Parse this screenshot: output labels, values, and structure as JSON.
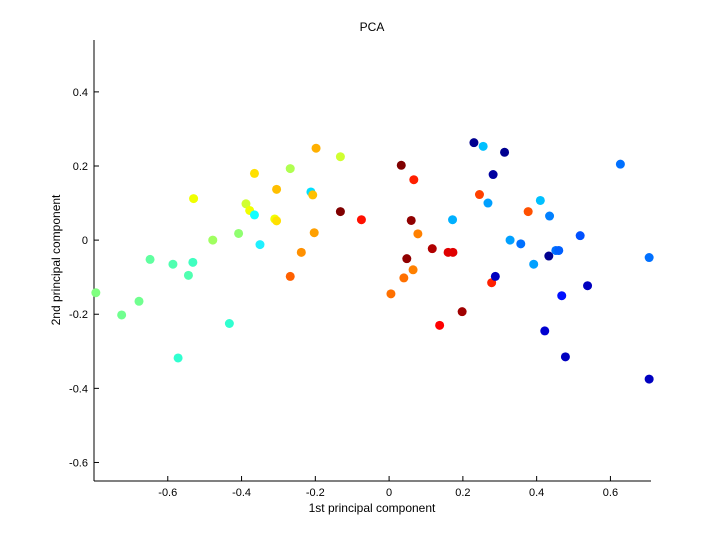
{
  "chart_data": {
    "type": "scatter",
    "title": "PCA",
    "xlabel": "1st principal component",
    "ylabel": "2nd principal component",
    "xlim": [
      -0.8,
      0.71
    ],
    "ylim": [
      -0.65,
      0.54
    ],
    "xticks": [
      -0.6,
      -0.4,
      -0.2,
      0,
      0.2,
      0.4,
      0.6
    ],
    "xtick_labels": [
      "-0.6",
      "-0.4",
      "-0.2",
      "0",
      "0.2",
      "0.4",
      "0.6"
    ],
    "yticks": [
      -0.6,
      -0.4,
      -0.2,
      0,
      0.2,
      0.4
    ],
    "ytick_labels": [
      "-0.6",
      "-0.4",
      "-0.2",
      "0",
      "0.2",
      "0.4"
    ],
    "grid": false,
    "colormap": "jet",
    "points": [
      {
        "x": -0.795,
        "y": -0.142,
        "color": "#80ff80"
      },
      {
        "x": -0.725,
        "y": -0.202,
        "color": "#70ff8f"
      },
      {
        "x": -0.678,
        "y": -0.165,
        "color": "#70ff8f"
      },
      {
        "x": -0.648,
        "y": -0.052,
        "color": "#60ffa0"
      },
      {
        "x": -0.586,
        "y": -0.065,
        "color": "#50ffb0"
      },
      {
        "x": -0.572,
        "y": -0.318,
        "color": "#30ffd0"
      },
      {
        "x": -0.544,
        "y": -0.095,
        "color": "#50ffb0"
      },
      {
        "x": -0.532,
        "y": -0.06,
        "color": "#40ffc0"
      },
      {
        "x": -0.53,
        "y": 0.112,
        "color": "#f0ff00"
      },
      {
        "x": -0.478,
        "y": 0.0,
        "color": "#a0ff60"
      },
      {
        "x": -0.433,
        "y": -0.225,
        "color": "#30ffd0"
      },
      {
        "x": -0.408,
        "y": 0.018,
        "color": "#90ff70"
      },
      {
        "x": -0.388,
        "y": 0.098,
        "color": "#d0ff30"
      },
      {
        "x": -0.378,
        "y": 0.08,
        "color": "#f0ff00"
      },
      {
        "x": -0.365,
        "y": 0.18,
        "color": "#ffe000"
      },
      {
        "x": -0.365,
        "y": 0.068,
        "color": "#10ffff"
      },
      {
        "x": -0.35,
        "y": -0.012,
        "color": "#20f0ff"
      },
      {
        "x": -0.31,
        "y": 0.057,
        "color": "#f0ff00"
      },
      {
        "x": -0.305,
        "y": 0.052,
        "color": "#ffe000"
      },
      {
        "x": -0.305,
        "y": 0.137,
        "color": "#ffbf00"
      },
      {
        "x": -0.268,
        "y": 0.193,
        "color": "#b0ff50"
      },
      {
        "x": -0.268,
        "y": -0.098,
        "color": "#ff6000"
      },
      {
        "x": -0.238,
        "y": -0.033,
        "color": "#ff9000"
      },
      {
        "x": -0.212,
        "y": 0.13,
        "color": "#00e0ff"
      },
      {
        "x": -0.207,
        "y": 0.122,
        "color": "#ffc000"
      },
      {
        "x": -0.203,
        "y": 0.02,
        "color": "#ffa000"
      },
      {
        "x": -0.198,
        "y": 0.248,
        "color": "#ffb000"
      },
      {
        "x": -0.132,
        "y": 0.225,
        "color": "#d0ff30"
      },
      {
        "x": -0.132,
        "y": 0.077,
        "color": "#800000"
      },
      {
        "x": -0.075,
        "y": 0.055,
        "color": "#ff1000"
      },
      {
        "x": 0.005,
        "y": -0.145,
        "color": "#ff7000"
      },
      {
        "x": 0.033,
        "y": 0.202,
        "color": "#800000"
      },
      {
        "x": 0.04,
        "y": -0.102,
        "color": "#ff7000"
      },
      {
        "x": 0.048,
        "y": -0.05,
        "color": "#900000"
      },
      {
        "x": 0.06,
        "y": 0.053,
        "color": "#900000"
      },
      {
        "x": 0.065,
        "y": -0.08,
        "color": "#ff8000"
      },
      {
        "x": 0.067,
        "y": 0.163,
        "color": "#ff2000"
      },
      {
        "x": 0.078,
        "y": 0.017,
        "color": "#ff8000"
      },
      {
        "x": 0.117,
        "y": -0.023,
        "color": "#b00000"
      },
      {
        "x": 0.137,
        "y": -0.23,
        "color": "#ff0000"
      },
      {
        "x": 0.16,
        "y": -0.033,
        "color": "#e00000"
      },
      {
        "x": 0.173,
        "y": -0.033,
        "color": "#e00000"
      },
      {
        "x": 0.172,
        "y": 0.055,
        "color": "#00b0ff"
      },
      {
        "x": 0.198,
        "y": -0.193,
        "color": "#a00000"
      },
      {
        "x": 0.23,
        "y": 0.263,
        "color": "#000090"
      },
      {
        "x": 0.245,
        "y": 0.123,
        "color": "#ff4000"
      },
      {
        "x": 0.255,
        "y": 0.253,
        "color": "#00c0ff"
      },
      {
        "x": 0.268,
        "y": 0.1,
        "color": "#00a0ff"
      },
      {
        "x": 0.278,
        "y": -0.115,
        "color": "#ff2000"
      },
      {
        "x": 0.282,
        "y": 0.177,
        "color": "#0000a0"
      },
      {
        "x": 0.288,
        "y": -0.098,
        "color": "#0000c0"
      },
      {
        "x": 0.313,
        "y": 0.237,
        "color": "#000090"
      },
      {
        "x": 0.328,
        "y": 0.0,
        "color": "#00a0ff"
      },
      {
        "x": 0.357,
        "y": -0.01,
        "color": "#0070ff"
      },
      {
        "x": 0.377,
        "y": 0.077,
        "color": "#ff5000"
      },
      {
        "x": 0.392,
        "y": -0.065,
        "color": "#00a0ff"
      },
      {
        "x": 0.41,
        "y": 0.107,
        "color": "#00c0ff"
      },
      {
        "x": 0.422,
        "y": -0.245,
        "color": "#0000d0"
      },
      {
        "x": 0.433,
        "y": -0.043,
        "color": "#000090"
      },
      {
        "x": 0.435,
        "y": 0.065,
        "color": "#0080ff"
      },
      {
        "x": 0.452,
        "y": -0.028,
        "color": "#0070ff"
      },
      {
        "x": 0.46,
        "y": -0.028,
        "color": "#0060ff"
      },
      {
        "x": 0.468,
        "y": -0.15,
        "color": "#0010ff"
      },
      {
        "x": 0.478,
        "y": -0.315,
        "color": "#0000c0"
      },
      {
        "x": 0.518,
        "y": 0.012,
        "color": "#0050ff"
      },
      {
        "x": 0.538,
        "y": -0.123,
        "color": "#0000c0"
      },
      {
        "x": 0.627,
        "y": 0.205,
        "color": "#0070ff"
      },
      {
        "x": 0.705,
        "y": -0.047,
        "color": "#0070ff"
      },
      {
        "x": 0.705,
        "y": -0.375,
        "color": "#0000c0"
      }
    ]
  }
}
